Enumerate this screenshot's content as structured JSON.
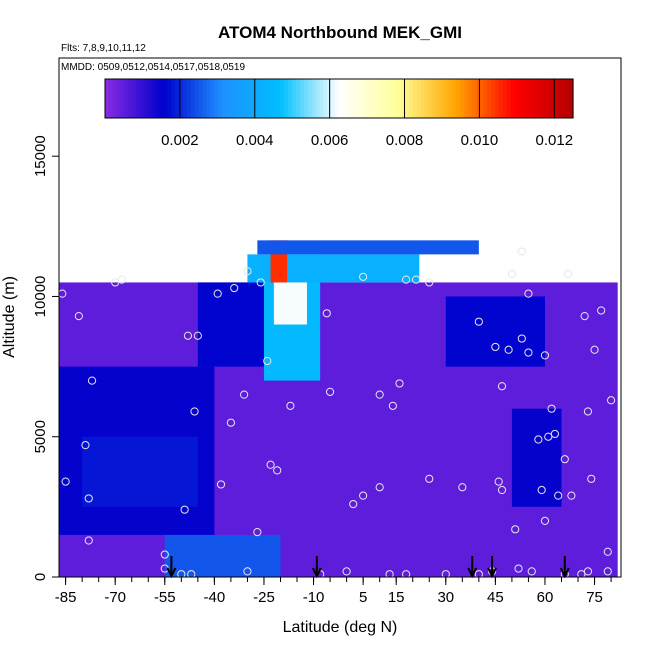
{
  "chart_data": {
    "type": "heatmap",
    "title": "ATOM4 Northbound MEK_GMI",
    "flights_note": "Flts: 7,8,9,10,11,12",
    "dates_note": "MMDD: 0509,0512,0514,0517,0518,0519",
    "xlabel": "Latitude (deg N)",
    "ylabel": "Altitude (m)",
    "xlim": [
      -87,
      83
    ],
    "ylim": [
      0,
      18500
    ],
    "x_ticks": [
      "-85",
      "-70",
      "-55",
      "-40",
      "-25",
      "-10",
      "5",
      "15",
      "30",
      "45",
      "60",
      "75"
    ],
    "y_ticks": [
      "0",
      "5000",
      "10000",
      "15000"
    ],
    "colorbar": {
      "range": [
        0,
        0.0125
      ],
      "tick_labels": [
        "0.002",
        "0.004",
        "0.006",
        "0.008",
        "0.010",
        "0.012"
      ],
      "tick_values": [
        0.002,
        0.004,
        0.006,
        0.008,
        0.01,
        0.012
      ],
      "colors": [
        "#8a2be2",
        "#0000cd",
        "#1e90ff",
        "#00bfff",
        "#ffffff",
        "#ffff99",
        "#ffa500",
        "#ff0000",
        "#b40000"
      ]
    },
    "arrows_latitude": [
      -53,
      -9,
      38,
      44,
      66
    ],
    "field_regions": [
      {
        "name": "background",
        "lat": [
          -87,
          82
        ],
        "alt": [
          0,
          10500
        ],
        "value": 0.0005
      },
      {
        "name": "southern-lowalt-blue",
        "lat": [
          -87,
          -40
        ],
        "alt": [
          1500,
          7500
        ],
        "value": 0.0015
      },
      {
        "name": "blue-band-south",
        "lat": [
          -80,
          -45
        ],
        "alt": [
          2500,
          5000
        ],
        "value": 0.0018
      },
      {
        "name": "pacific-upper-blue",
        "lat": [
          -45,
          -25
        ],
        "alt": [
          7500,
          10500
        ],
        "value": 0.0016
      },
      {
        "name": "uttl-plume",
        "lat": [
          -25,
          -8
        ],
        "alt": [
          7000,
          11500
        ],
        "value": 0.0045
      },
      {
        "name": "uttl-core",
        "lat": [
          -22,
          -12
        ],
        "alt": [
          9000,
          11200
        ],
        "value": 0.0062
      },
      {
        "name": "uttl-top-band",
        "lat": [
          -30,
          22
        ],
        "alt": [
          10500,
          11500
        ],
        "value": 0.0042
      },
      {
        "name": "uttl-peak",
        "lat": [
          -23,
          -18
        ],
        "alt": [
          10500,
          12000
        ],
        "value": 0.0105
      },
      {
        "name": "top-layer",
        "lat": [
          -27,
          40
        ],
        "alt": [
          11500,
          12000
        ],
        "value": 0.0025
      },
      {
        "name": "northern-upper-blue",
        "lat": [
          30,
          60
        ],
        "alt": [
          7500,
          10000
        ],
        "value": 0.0016
      },
      {
        "name": "northern-midalt-blue",
        "lat": [
          50,
          65
        ],
        "alt": [
          2500,
          6000
        ],
        "value": 0.0015
      },
      {
        "name": "boundary-layer-blue",
        "lat": [
          -55,
          -20
        ],
        "alt": [
          0,
          1500
        ],
        "value": 0.0025
      }
    ],
    "sample_points": [
      {
        "x": -86,
        "y": 10100
      },
      {
        "x": -81,
        "y": 9300
      },
      {
        "x": -79,
        "y": 4700
      },
      {
        "x": -78,
        "y": 2800
      },
      {
        "x": -78,
        "y": 1300
      },
      {
        "x": -77,
        "y": 7000
      },
      {
        "x": -85,
        "y": 3400
      },
      {
        "x": -68,
        "y": 10600
      },
      {
        "x": -55,
        "y": 800
      },
      {
        "x": -55,
        "y": 300
      },
      {
        "x": -50,
        "y": 100
      },
      {
        "x": -47,
        "y": 100
      },
      {
        "x": -49,
        "y": 2400
      },
      {
        "x": -48,
        "y": 8600
      },
      {
        "x": -45,
        "y": 8600
      },
      {
        "x": -46,
        "y": 5900
      },
      {
        "x": -39,
        "y": 10100
      },
      {
        "x": -38,
        "y": 3300
      },
      {
        "x": -35,
        "y": 5500
      },
      {
        "x": -34,
        "y": 10300
      },
      {
        "x": -31,
        "y": 6500
      },
      {
        "x": -30,
        "y": 200
      },
      {
        "x": -27,
        "y": 1600
      },
      {
        "x": -23,
        "y": 4000
      },
      {
        "x": -21,
        "y": 3800
      },
      {
        "x": -17,
        "y": 6100
      },
      {
        "x": -24,
        "y": 7700
      },
      {
        "x": -30,
        "y": 10900
      },
      {
        "x": -26,
        "y": 10500
      },
      {
        "x": -8,
        "y": 100
      },
      {
        "x": -6,
        "y": 9400
      },
      {
        "x": -5,
        "y": 6600
      },
      {
        "x": 2,
        "y": 2600
      },
      {
        "x": 5,
        "y": 2900
      },
      {
        "x": 5,
        "y": 10700
      },
      {
        "x": 10,
        "y": 6500
      },
      {
        "x": 10,
        "y": 3200
      },
      {
        "x": 14,
        "y": 6100
      },
      {
        "x": 16,
        "y": 6900
      },
      {
        "x": 18,
        "y": 10600
      },
      {
        "x": 21,
        "y": 10600
      },
      {
        "x": 25,
        "y": 3500
      },
      {
        "x": 25,
        "y": 10500
      },
      {
        "x": 30,
        "y": 100
      },
      {
        "x": 35,
        "y": 3200
      },
      {
        "x": 40,
        "y": 9100
      },
      {
        "x": 45,
        "y": 8200
      },
      {
        "x": 46,
        "y": 3400
      },
      {
        "x": 47,
        "y": 3100
      },
      {
        "x": 47,
        "y": 6800
      },
      {
        "x": 49,
        "y": 8100
      },
      {
        "x": 50,
        "y": 10800
      },
      {
        "x": 51,
        "y": 1700
      },
      {
        "x": 53,
        "y": 11600
      },
      {
        "x": 53,
        "y": 8500
      },
      {
        "x": 55,
        "y": 10100
      },
      {
        "x": 55,
        "y": 8000
      },
      {
        "x": 58,
        "y": 4900
      },
      {
        "x": 59,
        "y": 3100
      },
      {
        "x": 60,
        "y": 2000
      },
      {
        "x": 60,
        "y": 7900
      },
      {
        "x": 61,
        "y": 5000
      },
      {
        "x": 62,
        "y": 6000
      },
      {
        "x": 63,
        "y": 5100
      },
      {
        "x": 64,
        "y": 2900
      },
      {
        "x": 66,
        "y": 4200
      },
      {
        "x": 67,
        "y": 10800
      },
      {
        "x": 68,
        "y": 2900
      },
      {
        "x": 72,
        "y": 9300
      },
      {
        "x": 73,
        "y": 5900
      },
      {
        "x": 74,
        "y": 3500
      },
      {
        "x": 75,
        "y": 8100
      },
      {
        "x": 77,
        "y": 9500
      },
      {
        "x": 80,
        "y": 6300
      },
      {
        "x": 71,
        "y": 100
      },
      {
        "x": 73,
        "y": 200
      },
      {
        "x": 66,
        "y": 100
      },
      {
        "x": 56,
        "y": 200
      },
      {
        "x": 52,
        "y": 300
      },
      {
        "x": 44,
        "y": 200
      },
      {
        "x": 40,
        "y": 100
      },
      {
        "x": 18,
        "y": 100
      },
      {
        "x": 13,
        "y": 100
      },
      {
        "x": 0,
        "y": 200
      },
      {
        "x": 79,
        "y": 200
      },
      {
        "x": 79,
        "y": 900
      },
      {
        "x": -70,
        "y": 10500
      }
    ]
  }
}
